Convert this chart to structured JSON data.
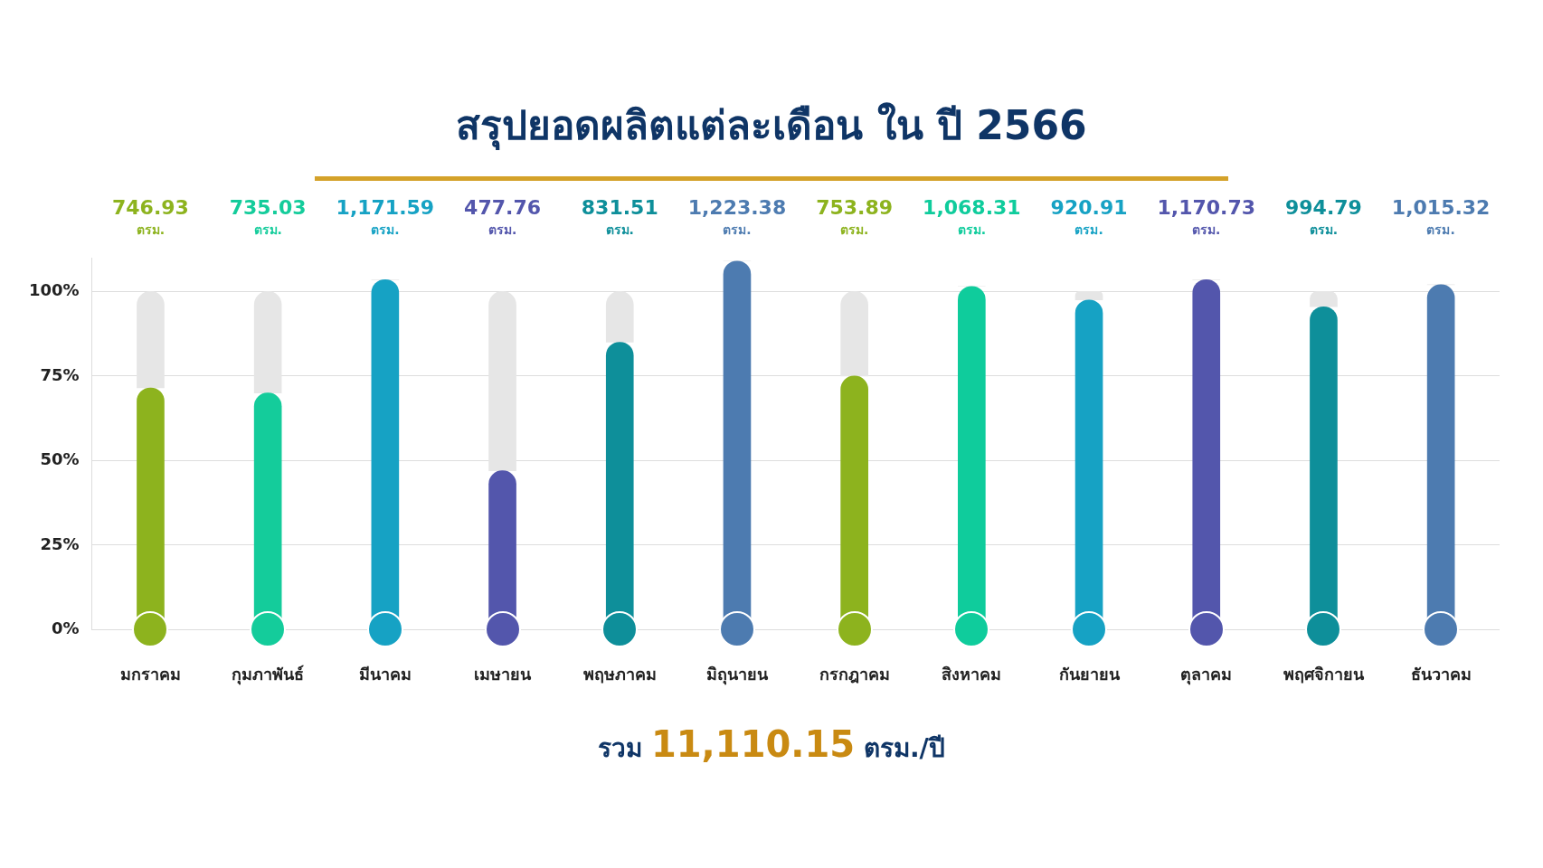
{
  "chart_data": {
    "type": "bar",
    "title": "สรุปยอดผลิตแต่ละเดือน ใน ปี 2566",
    "categories": [
      "มกราคม",
      "กุมภาพันธ์",
      "มีนาคม",
      "เมษายน",
      "พฤษภาคม",
      "มิถุนายน",
      "กรกฎาคม",
      "สิงหาคม",
      "กันยายน",
      "ตุลาคม",
      "พฤศจิกายน",
      "ธันวาคม"
    ],
    "stacked": true,
    "series": [
      {
        "colors": [
          "#8db31e",
          "#14cc9b",
          "#16a2c4",
          "#5356ac",
          "#0e8f9a",
          "#4d7bb0",
          "#8db31e",
          "#0fcc9c",
          "#16a2c4",
          "#5356ac",
          "#0e8f9a",
          "#4d7bb0"
        ],
        "values": [
          71.5,
          70,
          103.5,
          47,
          85,
          109,
          75,
          101.5,
          97.5,
          103.5,
          95.5,
          102
        ]
      },
      {
        "color": "#e6e6e6",
        "values": [
          28.5,
          30,
          0,
          53,
          15,
          0,
          25,
          0,
          2.5,
          0,
          4.5,
          0
        ]
      }
    ],
    "ylim": [
      0,
      110
    ],
    "yticks": [
      {
        "value": 0,
        "label": "0%"
      },
      {
        "value": 25,
        "label": "25%"
      },
      {
        "value": 50,
        "label": "50%"
      },
      {
        "value": 75,
        "label": "75%"
      },
      {
        "value": 100,
        "label": "100%"
      }
    ],
    "grid": "y",
    "legend": false,
    "annotations": [
      "746.93\nตรม.",
      "735.03\nตรม.",
      "1,171.59\nตรม.",
      "477.76\nตรม.",
      "831.51\nตรม.",
      "1,223.38\nตรม.",
      "753.89\nตรม.",
      "1,068.31\nตรม.",
      "920.91\nตรม.",
      "1,170.73\nตรม.",
      "994.79\nตรม.",
      "1,015.32\nตรม.",
      "รวม 11,110.15 ตรม./ปี"
    ]
  }
}
